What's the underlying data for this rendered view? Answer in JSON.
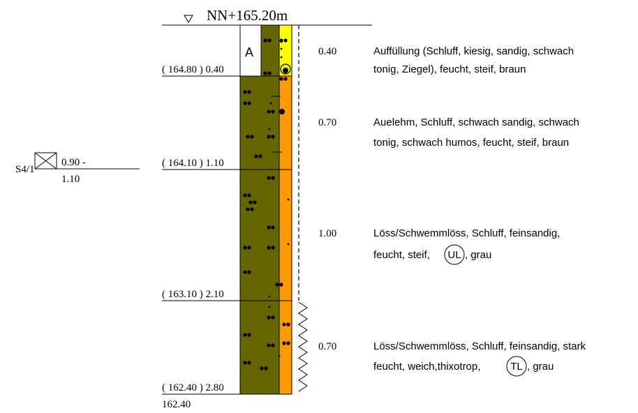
{
  "header": {
    "elevation_label": "NN+165.20m"
  },
  "sample": {
    "id": "S4/1",
    "depth_top": "0.90 -",
    "depth_bottom": "1.10"
  },
  "layer_boundaries": [
    {
      "label": "( 164.80 ) 0.40",
      "depth": 0.4
    },
    {
      "label": "( 164.10 ) 1.10",
      "depth": 1.1
    },
    {
      "label": "( 163.10 ) 2.10",
      "depth": 2.1
    },
    {
      "label": "( 162.40 ) 2.80",
      "depth": 2.8
    }
  ],
  "bottom_label": "162.40",
  "fill_marker": "A",
  "layers": [
    {
      "thickness_label": "0.40",
      "description_line1": "Auffüllung (Schluff, kiesig, sandig, schwach",
      "description_line2": "tonig, Ziegel), feucht, steif, braun",
      "description_circled": "",
      "description_after": "",
      "column_color": "#ffff00"
    },
    {
      "thickness_label": "0.70",
      "description_line1": "Auelehm, Schluff, schwach sandig, schwach",
      "description_line2": "tonig, schwach humos, feucht, steif, braun",
      "description_circled": "",
      "description_after": "",
      "column_color": "#ff9900"
    },
    {
      "thickness_label": "1.00",
      "description_line1": "Löss/Schwemmlöss, Schluff, feinsandig,",
      "description_line2": "feucht, steif,",
      "description_circled": "UL",
      "description_after": ", grau",
      "column_color": "#ff9900"
    },
    {
      "thickness_label": "0.70",
      "description_line1": "Löss/Schwemmlöss, Schluff, feinsandig, stark",
      "description_line2": "feucht, weich,thixotrop,",
      "description_circled": "TL",
      "description_after": ", grau",
      "column_color": "#ff9900"
    }
  ],
  "colors": {
    "soil_pattern": "#666600",
    "fill_color": "#ffff00",
    "natural_color": "#ff9900",
    "line": "#000000"
  }
}
